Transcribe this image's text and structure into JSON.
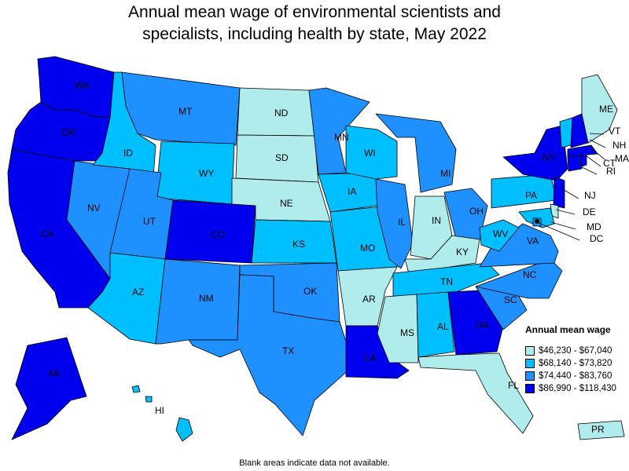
{
  "title": {
    "line1": "Annual mean wage of environmental scientists and",
    "line2": "specialists, including health by state, May 2022"
  },
  "legend": {
    "title": "Annual mean wage",
    "items": [
      {
        "label": "$46,230 - $67,040",
        "color": "#b0ecec"
      },
      {
        "label": "$68,140 - $73,820",
        "color": "#00bfff"
      },
      {
        "label": "$74,440 - $83,760",
        "color": "#1e90ff"
      },
      {
        "label": "$86,990 - $118,430",
        "color": "#0000ee"
      }
    ]
  },
  "footnote": "Blank areas indicate data not available.",
  "states": [
    {
      "abbr": "WA",
      "tier": 3
    },
    {
      "abbr": "OR",
      "tier": 3
    },
    {
      "abbr": "CA",
      "tier": 3
    },
    {
      "abbr": "NV",
      "tier": 2
    },
    {
      "abbr": "ID",
      "tier": 1
    },
    {
      "abbr": "MT",
      "tier": 2
    },
    {
      "abbr": "WY",
      "tier": 1
    },
    {
      "abbr": "UT",
      "tier": 2
    },
    {
      "abbr": "AZ",
      "tier": 1
    },
    {
      "abbr": "CO",
      "tier": 3
    },
    {
      "abbr": "NM",
      "tier": 2
    },
    {
      "abbr": "ND",
      "tier": 0
    },
    {
      "abbr": "SD",
      "tier": 0
    },
    {
      "abbr": "NE",
      "tier": 0
    },
    {
      "abbr": "KS",
      "tier": 1
    },
    {
      "abbr": "OK",
      "tier": 2
    },
    {
      "abbr": "TX",
      "tier": 2
    },
    {
      "abbr": "MN",
      "tier": 2
    },
    {
      "abbr": "IA",
      "tier": 1
    },
    {
      "abbr": "MO",
      "tier": 1
    },
    {
      "abbr": "AR",
      "tier": 0
    },
    {
      "abbr": "LA",
      "tier": 3
    },
    {
      "abbr": "WI",
      "tier": 1
    },
    {
      "abbr": "IL",
      "tier": 2
    },
    {
      "abbr": "MI",
      "tier": 2
    },
    {
      "abbr": "IN",
      "tier": 0
    },
    {
      "abbr": "OH",
      "tier": 2
    },
    {
      "abbr": "KY",
      "tier": 0
    },
    {
      "abbr": "TN",
      "tier": 1
    },
    {
      "abbr": "MS",
      "tier": 0
    },
    {
      "abbr": "AL",
      "tier": 1
    },
    {
      "abbr": "GA",
      "tier": 3
    },
    {
      "abbr": "FL",
      "tier": 0
    },
    {
      "abbr": "SC",
      "tier": 2
    },
    {
      "abbr": "NC",
      "tier": 2
    },
    {
      "abbr": "VA",
      "tier": 2
    },
    {
      "abbr": "WV",
      "tier": 1
    },
    {
      "abbr": "PA",
      "tier": 1
    },
    {
      "abbr": "NY",
      "tier": 3
    },
    {
      "abbr": "NJ",
      "tier": 3
    },
    {
      "abbr": "DE",
      "tier": 0
    },
    {
      "abbr": "MD",
      "tier": 1
    },
    {
      "abbr": "DC",
      "tier": 2
    },
    {
      "abbr": "CT",
      "tier": 3
    },
    {
      "abbr": "RI",
      "tier": 3
    },
    {
      "abbr": "MA",
      "tier": 3
    },
    {
      "abbr": "VT",
      "tier": 1
    },
    {
      "abbr": "NH",
      "tier": 3
    },
    {
      "abbr": "ME",
      "tier": 0
    },
    {
      "abbr": "AK",
      "tier": 3
    },
    {
      "abbr": "HI",
      "tier": 1
    },
    {
      "abbr": "PR",
      "tier": 0
    }
  ]
}
